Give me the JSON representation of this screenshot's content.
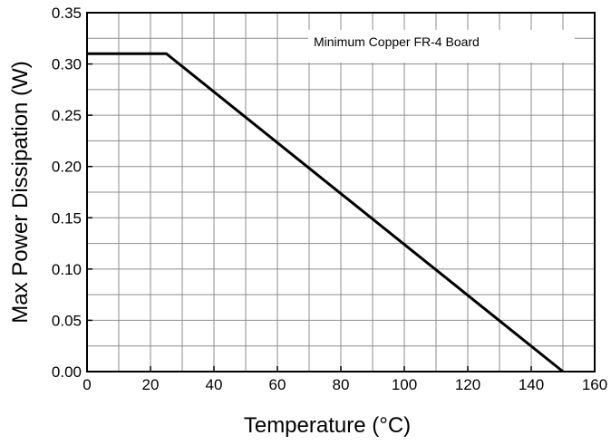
{
  "chart_data": {
    "type": "line",
    "xlabel": "Temperature (°C)",
    "ylabel": "Max Power Dissipation (W)",
    "xlim": [
      0,
      160
    ],
    "ylim": [
      0,
      0.35
    ],
    "x_ticks": [
      "0",
      "20",
      "40",
      "60",
      "80",
      "100",
      "120",
      "140",
      "160"
    ],
    "y_ticks": [
      "0.00",
      "0.05",
      "0.10",
      "0.15",
      "0.20",
      "0.25",
      "0.30",
      "0.35"
    ],
    "x_tick_values": [
      0,
      20,
      40,
      60,
      80,
      100,
      120,
      140,
      160
    ],
    "y_tick_values": [
      0,
      0.05,
      0.1,
      0.15,
      0.2,
      0.25,
      0.3,
      0.35
    ],
    "grid": true,
    "grid_minor_x_step": 10,
    "grid_minor_y_step": 0.025,
    "legend_position": "top-right",
    "annotation": "Minimum Copper FR-4 Board",
    "series": [
      {
        "color": "#000000",
        "x": [
          0,
          25,
          150
        ],
        "y": [
          0.31,
          0.31,
          0.0
        ]
      }
    ]
  }
}
